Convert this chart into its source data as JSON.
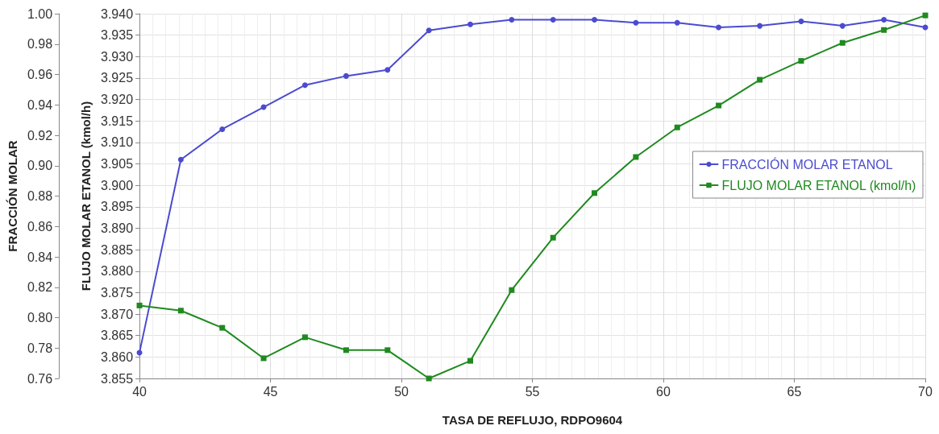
{
  "chart_data": {
    "type": "line",
    "xlabel": "TASA DE REFLUJO, RDPO9604",
    "ylabel": "FLUJO MOLAR ETANOL (kmol/h)",
    "y2label": "FRACCIÓN MOLAR",
    "x": [
      40,
      41.58,
      43.16,
      44.74,
      46.32,
      47.89,
      49.47,
      51.05,
      52.63,
      54.21,
      55.79,
      57.37,
      58.95,
      60.53,
      62.11,
      63.68,
      65.26,
      66.84,
      68.42,
      70
    ],
    "series": [
      {
        "name": "FRACCIÓN MOLAR ETANOL",
        "color": "#4b4bd0",
        "marker": "circle",
        "axis": "y2",
        "values": [
          0.777,
          0.904,
          0.924,
          0.9385,
          0.953,
          0.959,
          0.963,
          0.989,
          0.993,
          0.996,
          0.996,
          0.996,
          0.994,
          0.994,
          0.991,
          0.992,
          0.995,
          0.992,
          0.996,
          0.991
        ]
      },
      {
        "name": "FLUJO MOLAR ETANOL (kmol/h)",
        "color": "#1f8a1f",
        "marker": "square",
        "values": [
          3.872,
          3.8708,
          3.8668,
          3.8597,
          3.8646,
          3.8616,
          3.8616,
          3.855,
          3.8591,
          3.8756,
          3.8878,
          3.8982,
          3.9066,
          3.9135,
          3.9186,
          3.9246,
          3.929,
          3.9332,
          3.9362,
          3.9396
        ]
      }
    ],
    "xlim": [
      40,
      70
    ],
    "xticks": [
      40,
      45,
      50,
      55,
      60,
      65,
      70
    ],
    "y2lim": [
      0.76,
      1.0
    ],
    "y2ticks": [
      {
        "value": 0.76,
        "label": "0.76"
      },
      {
        "value": 0.78,
        "label": "0.78"
      },
      {
        "value": 0.8,
        "label": "0.80"
      },
      {
        "value": 0.82,
        "label": "0.82"
      },
      {
        "value": 0.84,
        "label": "0.84"
      },
      {
        "value": 0.86,
        "label": "0.86"
      },
      {
        "value": 0.88,
        "label": "0.88"
      },
      {
        "value": 0.9,
        "label": "0.90"
      },
      {
        "value": 0.92,
        "label": "0.92"
      },
      {
        "value": 0.94,
        "label": "0.94"
      },
      {
        "value": 0.96,
        "label": "0.96"
      },
      {
        "value": 0.98,
        "label": "0.98"
      },
      {
        "value": 1.0,
        "label": "1.00"
      }
    ],
    "ylim": [
      3.855,
      3.94
    ],
    "yticks": [
      {
        "value": 3.855,
        "label": "3.855"
      },
      {
        "value": 3.86,
        "label": "3.860"
      },
      {
        "value": 3.865,
        "label": "3.865"
      },
      {
        "value": 3.87,
        "label": "3.870"
      },
      {
        "value": 3.875,
        "label": "3.875"
      },
      {
        "value": 3.88,
        "label": "3.880"
      },
      {
        "value": 3.885,
        "label": "3.885"
      },
      {
        "value": 3.89,
        "label": "3.890"
      },
      {
        "value": 3.895,
        "label": "3.895"
      },
      {
        "value": 3.9,
        "label": "3.900"
      },
      {
        "value": 3.905,
        "label": "3.905"
      },
      {
        "value": 3.91,
        "label": "3.910"
      },
      {
        "value": 3.915,
        "label": "3.915"
      },
      {
        "value": 3.92,
        "label": "3.920"
      },
      {
        "value": 3.925,
        "label": "3.925"
      },
      {
        "value": 3.93,
        "label": "3.930"
      },
      {
        "value": 3.935,
        "label": "3.935"
      },
      {
        "value": 3.94,
        "label": "3.940"
      }
    ],
    "grid": true,
    "legend": "right",
    "line_style": "solid"
  }
}
